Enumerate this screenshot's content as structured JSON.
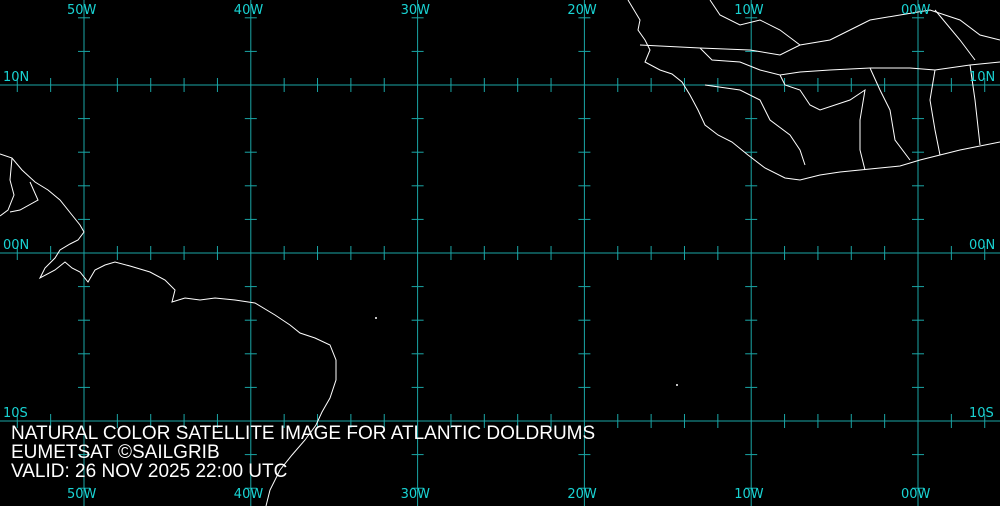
{
  "map": {
    "grid_color": "#1aa6a6",
    "label_color": "#19d3d3",
    "coast_color": "#ffffff",
    "longitudes": [
      {
        "value": -50,
        "label": "50W"
      },
      {
        "value": -40,
        "label": "40W"
      },
      {
        "value": -30,
        "label": "30W"
      },
      {
        "value": -20,
        "label": "20W"
      },
      {
        "value": -10,
        "label": "10W"
      },
      {
        "value": 0,
        "label": "00W"
      }
    ],
    "latitudes": [
      {
        "value": 10,
        "label": "10N"
      },
      {
        "value": 0,
        "label": "00N"
      },
      {
        "value": -10,
        "label": "10S"
      }
    ],
    "tick_interval_deg": 2
  },
  "caption": {
    "line1": "NATURAL COLOR SATELLITE IMAGE FOR ATLANTIC DOLDRUMS",
    "line2": "EUMETSAT ©SAILGRIB",
    "line3": "VALID:  26 NOV 2025 22:00 UTC"
  }
}
